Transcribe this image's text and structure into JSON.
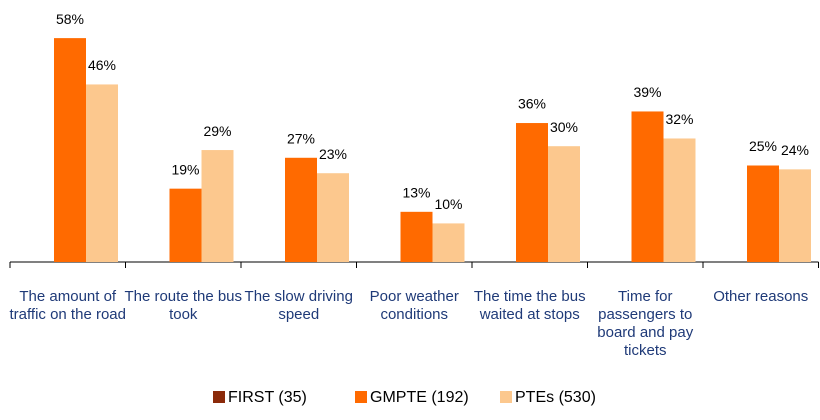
{
  "chart_data": {
    "type": "bar",
    "categories": [
      "The amount of traffic on the road",
      "The route the bus took",
      "The slow driving speed",
      "Poor weather conditions",
      "The time the bus waited at stops",
      "Time for passengers to board and pay tickets",
      "Other reasons"
    ],
    "series": [
      {
        "name": "FIRST (35)",
        "color": "#8b2a0a",
        "values": [
          null,
          null,
          null,
          null,
          null,
          null,
          null
        ]
      },
      {
        "name": "GMPTE (192)",
        "color": "#ff6a00",
        "values": [
          58,
          19,
          27,
          13,
          36,
          39,
          25
        ],
        "value_labels": [
          "58%",
          "19%",
          "27%",
          "13%",
          "36%",
          "39%",
          "25%"
        ]
      },
      {
        "name": "PTEs (530)",
        "color": "#fcc88e",
        "values": [
          46,
          29,
          23,
          10,
          30,
          32,
          24
        ],
        "value_labels": [
          "46%",
          "29%",
          "23%",
          "10%",
          "30%",
          "32%",
          "24%"
        ]
      }
    ]
  }
}
